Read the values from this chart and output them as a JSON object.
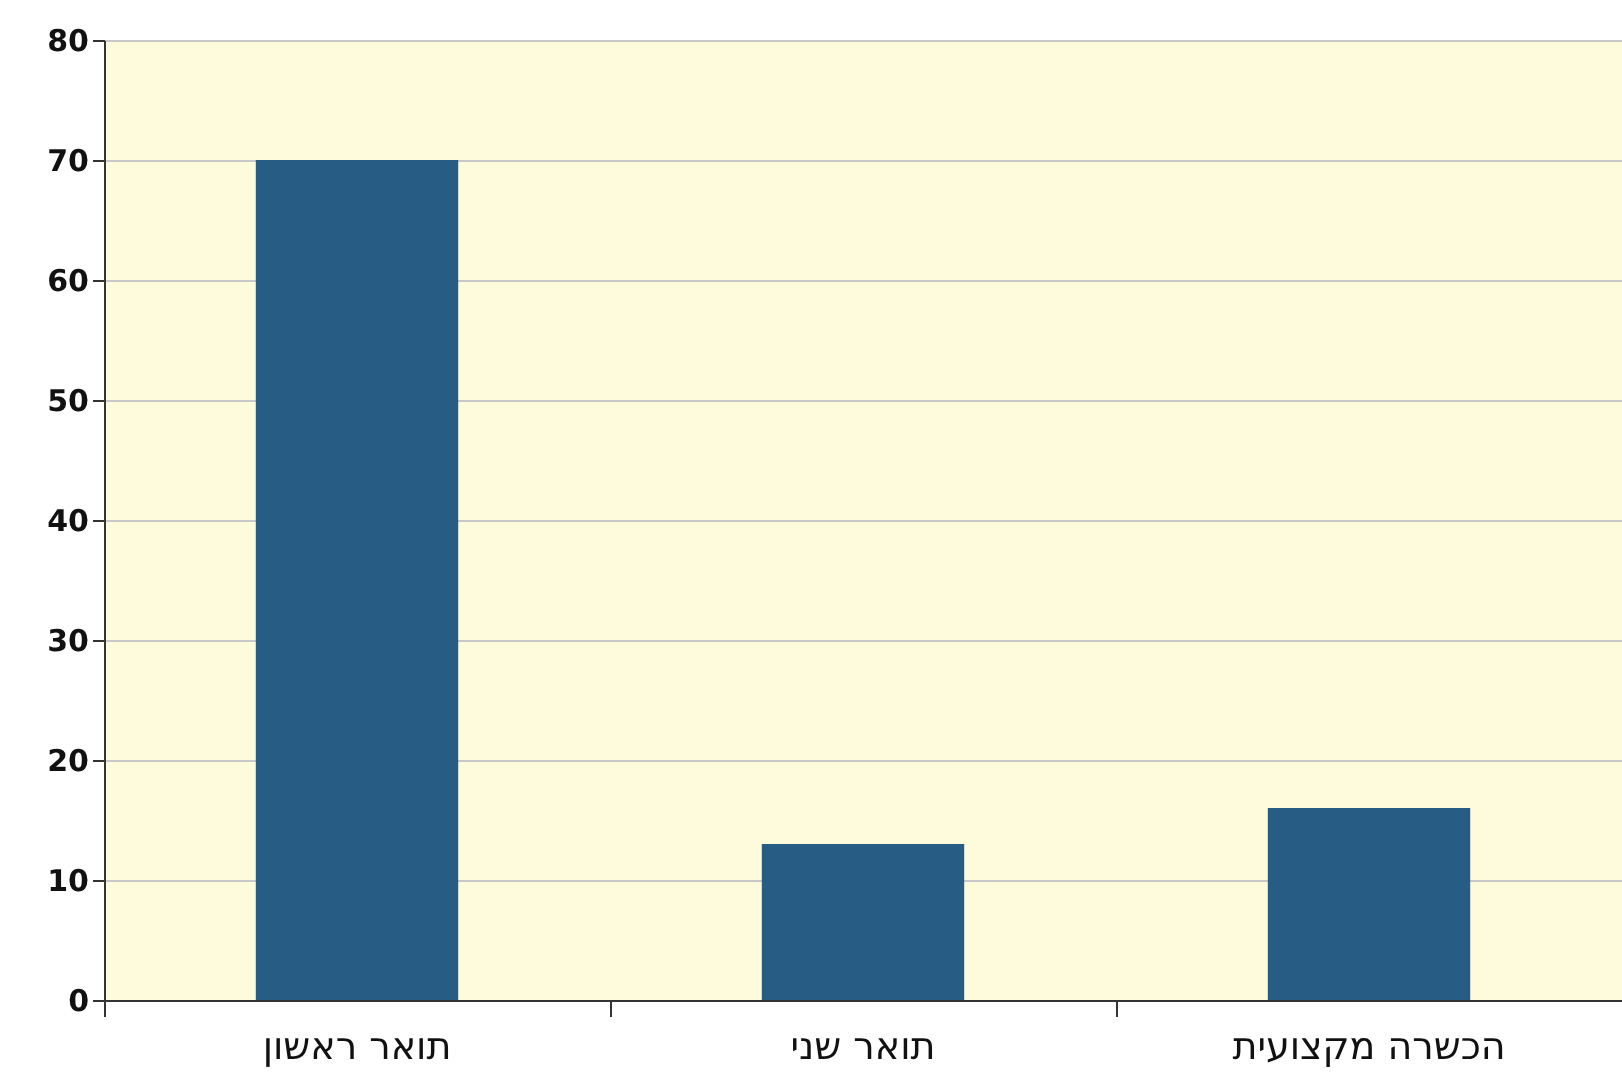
{
  "chart_data": {
    "type": "bar",
    "categories": [
      "תואר ראשון",
      "תואר שני",
      "הכשרה מקצועית"
    ],
    "values": [
      70,
      13,
      16
    ],
    "color": "#275d85",
    "ylim": [
      0,
      80
    ],
    "yticks": [
      0,
      10,
      20,
      30,
      40,
      50,
      60,
      70,
      80
    ],
    "grid": "y"
  }
}
